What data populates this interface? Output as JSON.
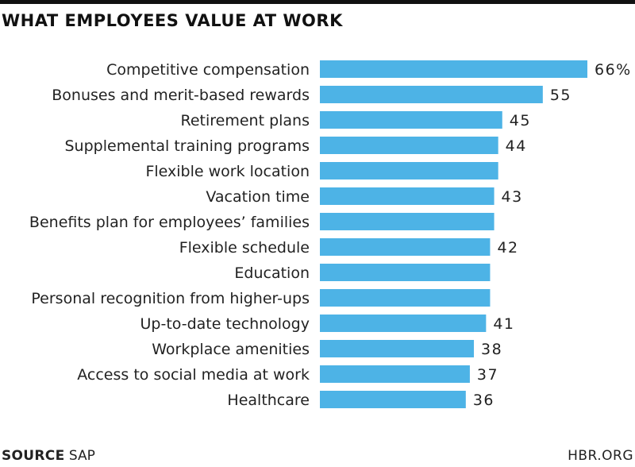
{
  "title": "WHAT EMPLOYEES VALUE AT WORK",
  "source": {
    "label": "SOURCE",
    "value": "SAP"
  },
  "brand": "HBR.ORG",
  "colors": {
    "bar": "#4db3e6",
    "text": "#222222"
  },
  "chart_data": {
    "type": "bar",
    "orientation": "horizontal",
    "title": "WHAT EMPLOYEES VALUE AT WORK",
    "categories": [
      "Competitive compensation",
      "Bonuses and merit-based rewards",
      "Retirement plans",
      "Supplemental training programs",
      "Flexible work location",
      "Vacation time",
      "Benefits plan for employees’ families",
      "Flexible schedule",
      "Education",
      "Personal recognition from higher-ups",
      "Up-to-date technology",
      "Workplace amenities",
      "Access to social media at work",
      "Healthcare"
    ],
    "values": [
      66,
      55,
      45,
      44,
      44,
      43,
      43,
      42,
      42,
      42,
      41,
      38,
      37,
      36
    ],
    "value_labels": [
      "66%",
      "55",
      "45",
      "44",
      "",
      "43",
      "",
      "42",
      "",
      "",
      "41",
      "38",
      "37",
      "36"
    ],
    "xlim": [
      0,
      66
    ],
    "grid": false,
    "legend": "none"
  }
}
